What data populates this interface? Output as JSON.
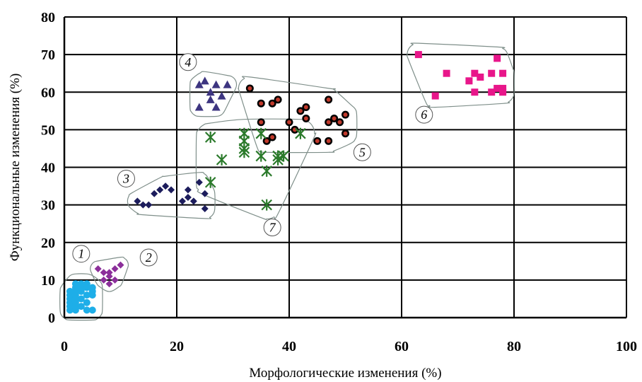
{
  "chart_data": {
    "type": "scatter",
    "title": "",
    "xlabel": "Морфологические изменения (%)",
    "ylabel": "Функциональные изменения (%)",
    "xlim": [
      0,
      100
    ],
    "ylim": [
      0,
      80
    ],
    "x_ticks": [
      "0",
      "20",
      "40",
      "60",
      "80",
      "100"
    ],
    "y_ticks": [
      "0",
      "10",
      "20",
      "30",
      "40",
      "50",
      "60",
      "70",
      "80"
    ],
    "grid": true,
    "series": [
      {
        "label": "1",
        "marker": "circle",
        "color": "#1eaee8",
        "points": [
          [
            1,
            2
          ],
          [
            1,
            3
          ],
          [
            1,
            4
          ],
          [
            1,
            5
          ],
          [
            1,
            6
          ],
          [
            1,
            7
          ],
          [
            2,
            2
          ],
          [
            2,
            3
          ],
          [
            2,
            4
          ],
          [
            2,
            5
          ],
          [
            2,
            6
          ],
          [
            2,
            7
          ],
          [
            2,
            8
          ],
          [
            2,
            9
          ],
          [
            3,
            3
          ],
          [
            3,
            5
          ],
          [
            3,
            7
          ],
          [
            3,
            8
          ],
          [
            3,
            9
          ],
          [
            4,
            2
          ],
          [
            4,
            4
          ],
          [
            4,
            6
          ],
          [
            4,
            8
          ],
          [
            4,
            9
          ],
          [
            5,
            2
          ],
          [
            5,
            6
          ],
          [
            5,
            7
          ],
          [
            5,
            8
          ]
        ]
      },
      {
        "label": "2",
        "marker": "diamond",
        "color": "#8b2f9a",
        "points": [
          [
            6,
            13
          ],
          [
            7,
            12
          ],
          [
            7,
            10
          ],
          [
            8,
            11
          ],
          [
            8,
            9
          ],
          [
            8,
            12
          ],
          [
            9,
            10
          ],
          [
            9,
            13
          ],
          [
            10,
            14
          ]
        ]
      },
      {
        "label": "3",
        "marker": "diamond",
        "color": "#1c1c5c",
        "points": [
          [
            13,
            31
          ],
          [
            14,
            30
          ],
          [
            15,
            30
          ],
          [
            16,
            33
          ],
          [
            17,
            34
          ],
          [
            18,
            35
          ],
          [
            19,
            34
          ],
          [
            21,
            31
          ],
          [
            22,
            32
          ],
          [
            22,
            34
          ],
          [
            23,
            31
          ],
          [
            24,
            36
          ],
          [
            25,
            33
          ],
          [
            25,
            29
          ]
        ]
      },
      {
        "label": "4",
        "marker": "triangle",
        "color": "#3d3580",
        "points": [
          [
            24,
            62
          ],
          [
            24,
            56
          ],
          [
            25,
            63
          ],
          [
            26,
            60
          ],
          [
            26,
            58
          ],
          [
            27,
            56
          ],
          [
            27,
            62
          ],
          [
            28,
            59
          ],
          [
            29,
            62
          ]
        ]
      },
      {
        "label": "5",
        "marker": "circle-dot",
        "color": "#7a1010",
        "points": [
          [
            33,
            61
          ],
          [
            35,
            57
          ],
          [
            35,
            52
          ],
          [
            36,
            47
          ],
          [
            37,
            57
          ],
          [
            37,
            48
          ],
          [
            38,
            58
          ],
          [
            40,
            52
          ],
          [
            41,
            50
          ],
          [
            42,
            55
          ],
          [
            43,
            56
          ],
          [
            43,
            53
          ],
          [
            45,
            47
          ],
          [
            47,
            58
          ],
          [
            47,
            52
          ],
          [
            47,
            47
          ],
          [
            48,
            53
          ],
          [
            49,
            52
          ],
          [
            50,
            54
          ],
          [
            50,
            49
          ]
        ]
      },
      {
        "label": "6",
        "marker": "square",
        "color": "#e8168a",
        "points": [
          [
            63,
            70
          ],
          [
            66,
            59
          ],
          [
            68,
            65
          ],
          [
            72,
            63
          ],
          [
            73,
            65
          ],
          [
            73,
            60
          ],
          [
            74,
            64
          ],
          [
            76,
            65
          ],
          [
            76,
            60
          ],
          [
            77,
            69
          ],
          [
            77,
            61
          ],
          [
            78,
            65
          ],
          [
            78,
            61
          ],
          [
            78,
            60
          ]
        ]
      },
      {
        "label": "7",
        "marker": "asterisk",
        "color": "#2b7a2b",
        "points": [
          [
            26,
            48
          ],
          [
            26,
            36
          ],
          [
            28,
            42
          ],
          [
            32,
            49
          ],
          [
            32,
            47
          ],
          [
            32,
            45
          ],
          [
            32,
            44
          ],
          [
            35,
            49
          ],
          [
            35,
            43
          ],
          [
            36,
            39
          ],
          [
            36,
            30
          ],
          [
            38,
            43
          ],
          [
            38,
            42
          ],
          [
            39,
            43
          ],
          [
            42,
            49
          ]
        ]
      }
    ],
    "cluster_labels": [
      {
        "text": "1",
        "x": 3,
        "y": 17
      },
      {
        "text": "2",
        "x": 15,
        "y": 16
      },
      {
        "text": "3",
        "x": 11,
        "y": 37
      },
      {
        "text": "4",
        "x": 22,
        "y": 68
      },
      {
        "text": "5",
        "x": 53,
        "y": 44
      },
      {
        "text": "6",
        "x": 64,
        "y": 54
      },
      {
        "text": "7",
        "x": 37,
        "y": 24
      }
    ]
  }
}
